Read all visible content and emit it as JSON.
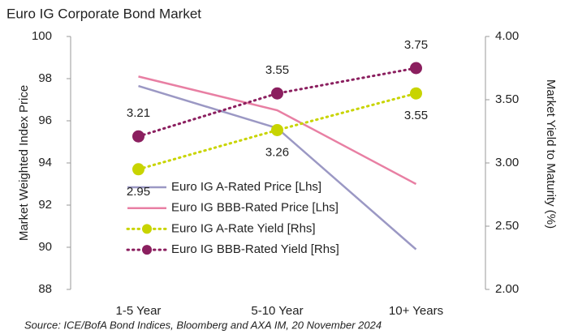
{
  "chart_data": {
    "type": "line",
    "title": "Euro IG Corporate Bond Market",
    "y_label": "Market Weighted Index Price",
    "y2_label": "Market Yield to Maturity (%)",
    "source": "Source: ICE/BofA Bond Indices, Bloomberg and AXA IM, 20 November  2024",
    "categories": [
      "1-5 Year",
      "5-10 Year",
      "10+ Years"
    ],
    "ylim": [
      88,
      100
    ],
    "yticks": [
      88,
      90,
      92,
      94,
      96,
      98,
      100
    ],
    "y2lim": [
      2,
      4
    ],
    "y2ticks": [
      {
        "value": 2,
        "label": "2.00"
      },
      {
        "value": 2.5,
        "label": "2.50"
      },
      {
        "value": 3,
        "label": "3.00"
      },
      {
        "value": 3.5,
        "label": "3.50"
      },
      {
        "value": 4,
        "label": "4.00"
      }
    ],
    "grid": false,
    "series": [
      {
        "name": "Euro IG A-Rated Price [Lhs]",
        "color": "#9b98c4",
        "values": [
          97.65,
          95.65,
          89.9
        ],
        "line_style": "solid",
        "marker": false
      },
      {
        "name": "Euro IG BBB-Rated Price [Lhs]",
        "color": "#e87fa3",
        "values": [
          98.1,
          96.5,
          93.0
        ],
        "line_style": "solid",
        "marker": false
      },
      {
        "name": "Euro IG A-Rate Yield [Rhs]",
        "color": "#c8d400",
        "values": [
          2.95,
          3.26,
          3.55
        ],
        "axis": "y2",
        "line_style": "dotted",
        "marker": true,
        "data_labels": true
      },
      {
        "name": "Euro IG BBB-Rated Yield [Rhs]",
        "color": "#8b1f5f",
        "values": [
          3.21,
          3.55,
          3.75
        ],
        "axis": "y2",
        "line_style": "dotted",
        "marker": true,
        "data_labels": true
      }
    ]
  }
}
